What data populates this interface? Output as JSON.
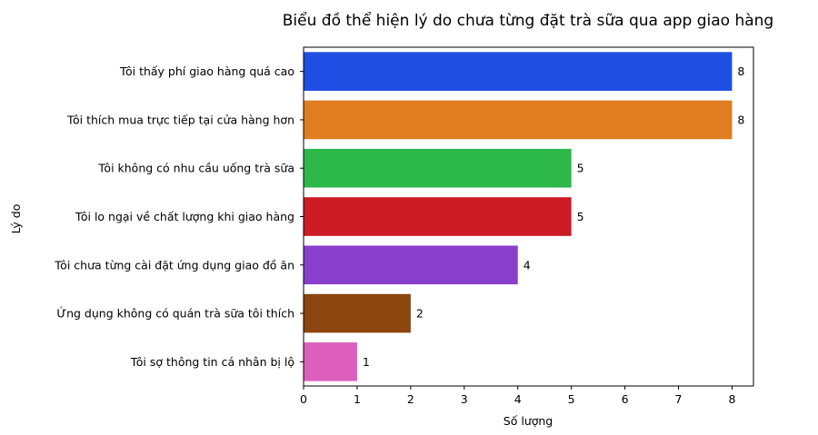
{
  "chart_data": {
    "type": "bar",
    "orientation": "horizontal",
    "title": "Biểu đồ thể hiện lý do chưa từng đặt trà sữa qua app giao hàng",
    "xlabel": "Số lượng",
    "ylabel": "Lý do",
    "xlim": [
      0,
      8.4
    ],
    "xticks": [
      0,
      1,
      2,
      3,
      4,
      5,
      6,
      7,
      8
    ],
    "grid": false,
    "legend": "none",
    "categories": [
      "Tôi thấy phí giao hàng quá cao",
      "Tôi thích mua trực tiếp tại cửa hàng hơn",
      "Tôi không có nhu cầu uống trà sữa",
      "Tôi lo ngại về chất lượng khi giao hàng",
      "Tôi chưa từng cài đặt ứng dụng giao đồ ăn",
      "Ứng dụng không có quán trà sữa tôi thích",
      "Tôi sợ thông tin cá nhân bị lộ"
    ],
    "values": [
      8,
      8,
      5,
      5,
      4,
      2,
      1
    ],
    "colors": [
      "#1f4ee3",
      "#e07d20",
      "#2db84a",
      "#cc1c26",
      "#8a3fcc",
      "#8b460f",
      "#dd5fbd"
    ]
  }
}
